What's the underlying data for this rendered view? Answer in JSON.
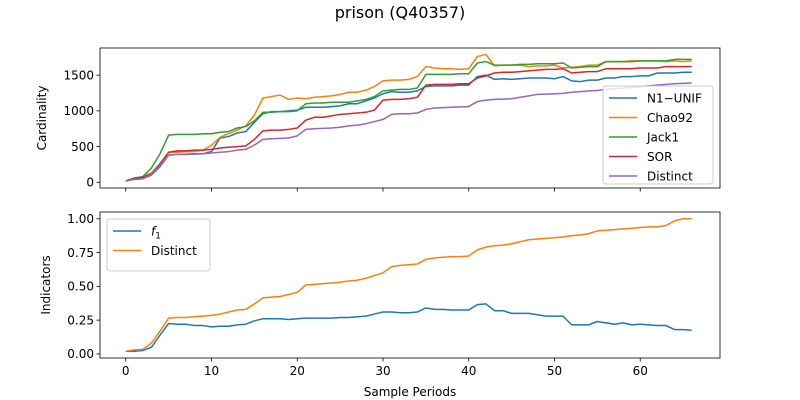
{
  "figure": {
    "title": "prison (Q40357)"
  },
  "chart_data": [
    {
      "type": "line",
      "ylabel": "Cardinality",
      "xlabel": "",
      "xlim": [
        -3,
        69.3
      ],
      "ylim": [
        -80,
        1880
      ],
      "xticks": [
        0,
        10,
        20,
        30,
        40,
        50,
        60
      ],
      "yticks": [
        0,
        500,
        1000,
        1500
      ],
      "ytick_labels": [
        "0",
        "500",
        "1000",
        "1500"
      ],
      "show_x_tick_labels": false,
      "grid": false,
      "legend_position": "center-right",
      "legend": [
        {
          "label": "N1−UNIF"
        },
        {
          "label": "Chao92"
        },
        {
          "label": "Jack1"
        },
        {
          "label": "SOR"
        },
        {
          "label": "Distinct"
        }
      ],
      "series": [
        {
          "name": "N1−UNIF",
          "color": "#1f77b4",
          "values": [
            20,
            40,
            50,
            100,
            220,
            380,
            390,
            390,
            395,
            400,
            430,
            620,
            640,
            690,
            710,
            840,
            960,
            990,
            990,
            1000,
            1010,
            1050,
            1050,
            1050,
            1060,
            1070,
            1100,
            1100,
            1140,
            1180,
            1240,
            1270,
            1260,
            1260,
            1280,
            1340,
            1350,
            1350,
            1350,
            1360,
            1360,
            1480,
            1500,
            1440,
            1450,
            1440,
            1450,
            1460,
            1460,
            1460,
            1450,
            1480,
            1420,
            1410,
            1430,
            1430,
            1460,
            1460,
            1480,
            1480,
            1490,
            1490,
            1530,
            1530,
            1530,
            1540,
            1540
          ]
        },
        {
          "name": "Chao92",
          "color": "#ff7f0e",
          "values": [
            20,
            50,
            80,
            130,
            260,
            420,
            420,
            430,
            430,
            450,
            520,
            630,
            680,
            730,
            790,
            940,
            1180,
            1200,
            1220,
            1160,
            1180,
            1170,
            1190,
            1200,
            1210,
            1230,
            1260,
            1260,
            1290,
            1340,
            1420,
            1430,
            1430,
            1440,
            1480,
            1620,
            1600,
            1590,
            1590,
            1580,
            1590,
            1760,
            1790,
            1630,
            1640,
            1640,
            1640,
            1620,
            1630,
            1630,
            1640,
            1600,
            1610,
            1620,
            1640,
            1640,
            1690,
            1690,
            1690,
            1700,
            1700,
            1700,
            1700,
            1690,
            1700,
            1690,
            1700
          ]
        },
        {
          "name": "Jack1",
          "color": "#2ca02c",
          "values": [
            20,
            60,
            80,
            200,
            400,
            660,
            670,
            670,
            670,
            680,
            680,
            700,
            710,
            760,
            780,
            860,
            980,
            980,
            990,
            990,
            1000,
            1100,
            1110,
            1110,
            1120,
            1120,
            1120,
            1140,
            1160,
            1200,
            1280,
            1290,
            1300,
            1300,
            1320,
            1510,
            1510,
            1510,
            1510,
            1520,
            1520,
            1670,
            1690,
            1640,
            1640,
            1640,
            1650,
            1650,
            1660,
            1660,
            1660,
            1670,
            1600,
            1610,
            1620,
            1620,
            1690,
            1690,
            1690,
            1690,
            1700,
            1700,
            1700,
            1700,
            1720,
            1720,
            1720
          ]
        },
        {
          "name": "SOR",
          "color": "#d62728",
          "values": [
            20,
            50,
            70,
            120,
            260,
            420,
            440,
            440,
            450,
            450,
            460,
            480,
            490,
            500,
            510,
            600,
            720,
            730,
            730,
            740,
            760,
            870,
            910,
            910,
            930,
            950,
            960,
            970,
            980,
            1010,
            1150,
            1160,
            1160,
            1170,
            1190,
            1360,
            1370,
            1370,
            1370,
            1380,
            1380,
            1460,
            1490,
            1530,
            1540,
            1540,
            1550,
            1560,
            1570,
            1580,
            1580,
            1590,
            1530,
            1540,
            1550,
            1550,
            1590,
            1590,
            1590,
            1590,
            1600,
            1600,
            1600,
            1620,
            1620,
            1620,
            1620
          ]
        },
        {
          "name": "Distinct",
          "color": "#9467bd",
          "values": [
            20,
            40,
            50,
            110,
            240,
            380,
            390,
            395,
            400,
            400,
            410,
            420,
            430,
            450,
            460,
            520,
            600,
            610,
            615,
            620,
            650,
            740,
            750,
            755,
            760,
            770,
            790,
            800,
            820,
            850,
            880,
            950,
            960,
            960,
            970,
            1020,
            1040,
            1045,
            1050,
            1055,
            1060,
            1130,
            1150,
            1160,
            1165,
            1170,
            1190,
            1210,
            1230,
            1235,
            1240,
            1245,
            1260,
            1270,
            1280,
            1285,
            1300,
            1310,
            1320,
            1330,
            1340,
            1350,
            1360,
            1370,
            1380,
            1385,
            1390
          ]
        }
      ]
    },
    {
      "type": "line",
      "ylabel": "Indicators",
      "xlabel": "Sample Periods",
      "xlim": [
        -3,
        69.3
      ],
      "ylim": [
        -0.03,
        1.05
      ],
      "xticks": [
        0,
        10,
        20,
        30,
        40,
        50,
        60
      ],
      "xtick_labels": [
        "0",
        "10",
        "20",
        "30",
        "40",
        "50",
        "60"
      ],
      "yticks": [
        0,
        0.25,
        0.5,
        0.75,
        1
      ],
      "ytick_labels": [
        "0.00",
        "0.25",
        "0.50",
        "0.75",
        "1.00"
      ],
      "grid": false,
      "legend_position": "top-left",
      "legend": [
        {
          "label": "f",
          "subscript": "1"
        },
        {
          "label": "Distinct"
        }
      ],
      "series": [
        {
          "name": "f1",
          "color": "#1f77b4",
          "values": [
            0.02,
            0.02,
            0.025,
            0.05,
            0.14,
            0.225,
            0.22,
            0.22,
            0.21,
            0.21,
            0.2,
            0.205,
            0.205,
            0.215,
            0.22,
            0.245,
            0.26,
            0.26,
            0.26,
            0.255,
            0.26,
            0.265,
            0.265,
            0.265,
            0.265,
            0.27,
            0.27,
            0.275,
            0.28,
            0.295,
            0.31,
            0.31,
            0.305,
            0.305,
            0.31,
            0.34,
            0.33,
            0.33,
            0.325,
            0.325,
            0.325,
            0.365,
            0.37,
            0.32,
            0.32,
            0.3,
            0.3,
            0.3,
            0.29,
            0.28,
            0.28,
            0.28,
            0.215,
            0.215,
            0.215,
            0.24,
            0.23,
            0.22,
            0.23,
            0.215,
            0.22,
            0.215,
            0.21,
            0.21,
            0.18,
            0.18,
            0.175
          ]
        },
        {
          "name": "Distinct",
          "color": "#ff7f0e",
          "values": [
            0.02,
            0.03,
            0.035,
            0.08,
            0.17,
            0.265,
            0.27,
            0.27,
            0.275,
            0.28,
            0.285,
            0.295,
            0.31,
            0.325,
            0.33,
            0.37,
            0.415,
            0.42,
            0.425,
            0.44,
            0.455,
            0.51,
            0.515,
            0.52,
            0.525,
            0.53,
            0.54,
            0.545,
            0.56,
            0.58,
            0.6,
            0.645,
            0.655,
            0.66,
            0.665,
            0.7,
            0.71,
            0.715,
            0.72,
            0.72,
            0.725,
            0.77,
            0.79,
            0.8,
            0.805,
            0.815,
            0.83,
            0.845,
            0.85,
            0.855,
            0.86,
            0.865,
            0.875,
            0.88,
            0.89,
            0.91,
            0.915,
            0.92,
            0.925,
            0.93,
            0.935,
            0.94,
            0.94,
            0.95,
            0.985,
            1.0,
            1.0
          ]
        }
      ]
    }
  ]
}
